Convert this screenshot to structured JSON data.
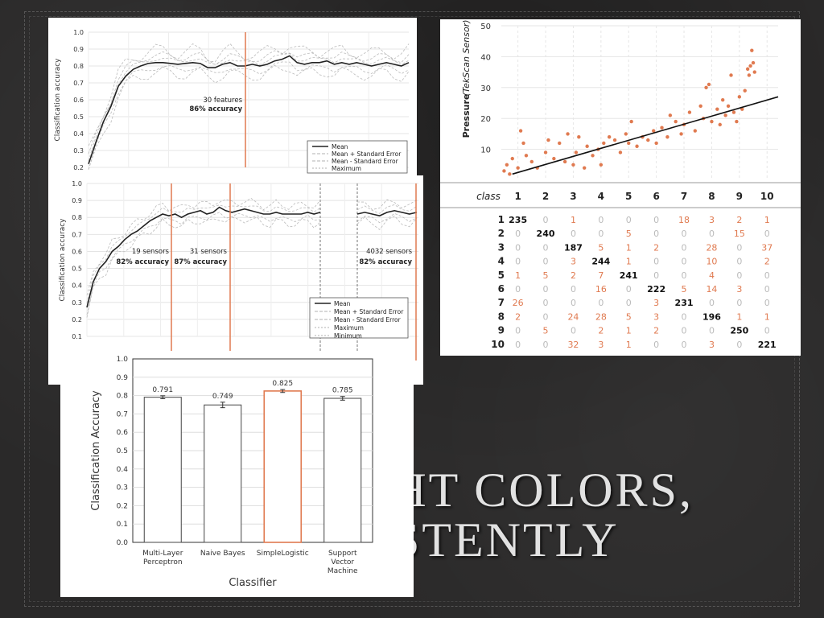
{
  "slide": {
    "title_line1": "GHT COLORS,",
    "title_line2": "STENTLY"
  },
  "colors": {
    "highlight": "#e07a50",
    "mean_line": "#222222",
    "band": "#bbbbbb"
  },
  "chart_data": [
    {
      "type": "line",
      "ylabel": "Classification accuracy",
      "ylim": [
        0.2,
        1.0
      ],
      "yticks": [
        "1.0",
        "0.9",
        "0.8",
        "0.7",
        "0.6",
        "0.5",
        "0.4",
        "0.3",
        "0.2"
      ],
      "annotation": {
        "line1": "30 features",
        "line2": "86% accuracy",
        "x": 0.49
      },
      "legend": [
        "Mean",
        "Mean + Standard Error",
        "Mean - Standard Error",
        "Maximum"
      ],
      "series": [
        {
          "name": "Mean",
          "values": [
            0.22,
            0.35,
            0.47,
            0.56,
            0.68,
            0.74,
            0.78,
            0.8,
            0.815,
            0.82,
            0.82,
            0.815,
            0.81,
            0.815,
            0.82,
            0.815,
            0.79,
            0.79,
            0.81,
            0.82,
            0.8,
            0.8,
            0.81,
            0.8,
            0.81,
            0.83,
            0.84,
            0.86,
            0.82,
            0.81,
            0.82,
            0.82,
            0.83,
            0.81,
            0.82,
            0.81,
            0.82,
            0.81,
            0.8,
            0.81,
            0.82,
            0.81,
            0.8,
            0.82
          ]
        }
      ]
    },
    {
      "type": "line",
      "ylabel": "Classification accuracy",
      "ylim": [
        0.1,
        1.0
      ],
      "yticks": [
        "1.0",
        "0.9",
        "0.8",
        "0.7",
        "0.6",
        "0.5",
        "0.4",
        "0.3",
        "0.2",
        "0.1"
      ],
      "annotations": [
        {
          "line1": "19 sensors",
          "line2": "82% accuracy"
        },
        {
          "line1": "31 sensors",
          "line2": "87% accuracy"
        },
        {
          "line1": "4032 sensors",
          "line2": "82% accuracy"
        }
      ],
      "legend": [
        "Mean",
        "Mean + Standard Error",
        "Mean - Standard Error",
        "Maximum",
        "Minimum"
      ],
      "series": [
        {
          "name": "Mean",
          "values": [
            0.27,
            0.42,
            0.5,
            0.54,
            0.6,
            0.63,
            0.67,
            0.7,
            0.72,
            0.75,
            0.78,
            0.8,
            0.82,
            0.81,
            0.82,
            0.8,
            0.82,
            0.83,
            0.84,
            0.82,
            0.83,
            0.86,
            0.84,
            0.83,
            0.84,
            0.85,
            0.84,
            0.83,
            0.82,
            0.82,
            0.83,
            0.82,
            0.82,
            0.82,
            0.82,
            0.83,
            0.82,
            0.83
          ]
        },
        {
          "name": "Mean (tail)",
          "values": [
            0.82,
            0.83,
            0.82,
            0.81,
            0.83,
            0.84,
            0.83,
            0.82,
            0.83
          ]
        }
      ]
    },
    {
      "type": "bar",
      "xlabel": "Classifier",
      "ylabel": "Classification Accuracy",
      "ylim": [
        0.0,
        1.0
      ],
      "yticks": [
        "1.0",
        "0.9",
        "0.8",
        "0.7",
        "0.6",
        "0.5",
        "0.4",
        "0.3",
        "0.2",
        "0.1",
        "0.0"
      ],
      "categories": [
        [
          "Multi-Layer",
          "Perceptron"
        ],
        [
          "Naive Bayes"
        ],
        [
          "SimpleLogistic"
        ],
        [
          "Support",
          "Vector",
          "Machine"
        ]
      ],
      "values": [
        0.791,
        0.749,
        0.825,
        0.785
      ],
      "value_labels": [
        "0.791",
        "0.749",
        "0.825",
        "0.785"
      ],
      "errors": [
        0.008,
        0.015,
        0.008,
        0.01
      ],
      "highlight_index": 2
    },
    {
      "type": "scatter",
      "ylabel_bold": "Pressure",
      "ylabel_italic": "(TekScan Sensor)",
      "ylim": [
        0,
        50
      ],
      "yticks": [
        "50",
        "40",
        "30",
        "20",
        "10"
      ],
      "xlim": [
        0.4,
        10.4
      ],
      "points": [
        [
          0.5,
          3
        ],
        [
          0.6,
          5
        ],
        [
          0.7,
          2
        ],
        [
          0.8,
          7
        ],
        [
          1.0,
          4
        ],
        [
          1.1,
          16
        ],
        [
          1.2,
          12
        ],
        [
          1.3,
          8
        ],
        [
          1.5,
          6
        ],
        [
          1.7,
          4
        ],
        [
          2.0,
          9
        ],
        [
          2.1,
          13
        ],
        [
          2.3,
          7
        ],
        [
          2.5,
          12
        ],
        [
          2.7,
          6
        ],
        [
          2.8,
          15
        ],
        [
          3.0,
          5
        ],
        [
          3.1,
          9
        ],
        [
          3.2,
          14
        ],
        [
          3.4,
          4
        ],
        [
          3.5,
          11
        ],
        [
          3.7,
          8
        ],
        [
          3.9,
          10
        ],
        [
          4.0,
          5
        ],
        [
          4.1,
          12
        ],
        [
          4.3,
          14
        ],
        [
          4.5,
          13
        ],
        [
          4.7,
          9
        ],
        [
          4.9,
          15
        ],
        [
          5.0,
          12
        ],
        [
          5.1,
          19
        ],
        [
          5.3,
          11
        ],
        [
          5.5,
          14
        ],
        [
          5.7,
          13
        ],
        [
          5.9,
          16
        ],
        [
          6.0,
          12
        ],
        [
          6.2,
          17
        ],
        [
          6.4,
          14
        ],
        [
          6.5,
          21
        ],
        [
          6.7,
          19
        ],
        [
          6.9,
          15
        ],
        [
          7.0,
          18
        ],
        [
          7.2,
          22
        ],
        [
          7.4,
          16
        ],
        [
          7.6,
          24
        ],
        [
          7.7,
          20
        ],
        [
          7.8,
          30
        ],
        [
          7.9,
          31
        ],
        [
          8.0,
          19
        ],
        [
          8.2,
          23
        ],
        [
          8.3,
          18
        ],
        [
          8.4,
          26
        ],
        [
          8.5,
          21
        ],
        [
          8.6,
          24
        ],
        [
          8.7,
          34
        ],
        [
          8.8,
          22
        ],
        [
          8.9,
          19
        ],
        [
          9.0,
          27
        ],
        [
          9.1,
          23
        ],
        [
          9.2,
          29
        ],
        [
          9.3,
          36
        ],
        [
          9.35,
          34
        ],
        [
          9.4,
          37
        ],
        [
          9.45,
          42
        ],
        [
          9.5,
          38
        ],
        [
          9.55,
          35
        ]
      ],
      "trend": [
        [
          0.8,
          2.0
        ],
        [
          10.4,
          27.0
        ]
      ],
      "class_header": "class",
      "classes": [
        "1",
        "2",
        "3",
        "4",
        "5",
        "6",
        "7",
        "8",
        "9",
        "10"
      ],
      "confusion": [
        [
          235,
          0,
          1,
          0,
          0,
          0,
          18,
          3,
          2,
          1
        ],
        [
          0,
          240,
          0,
          0,
          5,
          0,
          0,
          0,
          15,
          0
        ],
        [
          0,
          0,
          187,
          5,
          1,
          2,
          0,
          28,
          0,
          37
        ],
        [
          0,
          0,
          3,
          244,
          1,
          0,
          0,
          10,
          0,
          2
        ],
        [
          1,
          5,
          2,
          7,
          241,
          0,
          0,
          4,
          0,
          0
        ],
        [
          0,
          0,
          0,
          16,
          0,
          222,
          5,
          14,
          3,
          0
        ],
        [
          26,
          0,
          0,
          0,
          0,
          3,
          231,
          0,
          0,
          0
        ],
        [
          2,
          0,
          24,
          28,
          5,
          3,
          0,
          196,
          1,
          1
        ],
        [
          0,
          5,
          0,
          2,
          1,
          2,
          0,
          0,
          250,
          0
        ],
        [
          0,
          0,
          32,
          3,
          1,
          0,
          0,
          3,
          0,
          221
        ]
      ]
    }
  ]
}
